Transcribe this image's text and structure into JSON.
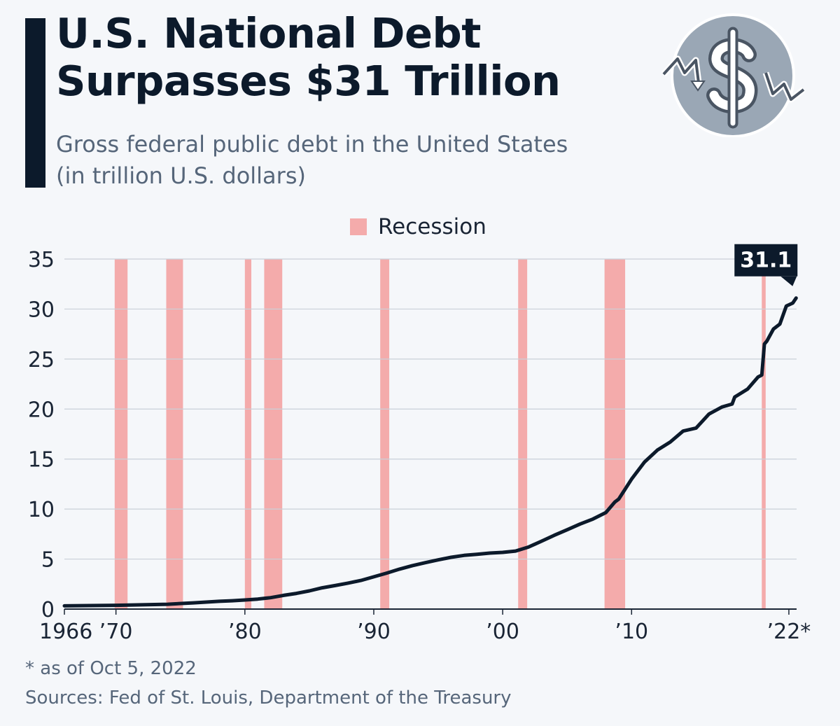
{
  "header": {
    "title_line1": "U.S. National Debt",
    "title_line2": "Surpasses $31 Trillion",
    "subtitle_line1": "Gross federal public debt in the United States",
    "subtitle_line2": "(in trillion U.S. dollars)"
  },
  "legend": {
    "label": "Recession",
    "color": "#f4abab"
  },
  "footer": {
    "footnote": "* as of Oct 5, 2022",
    "sources": "Sources: Fed of St. Louis, Department of the Treasury"
  },
  "logo": {
    "icon": "dollar-coin-icon",
    "color": "#9aa7b5"
  },
  "colors": {
    "line": "#0c1a2b",
    "recession": "#f4abab",
    "grid": "#c9d0d8",
    "text": "#1a2535"
  },
  "chart_data": {
    "type": "line",
    "xlim": [
      1966,
      2022.8
    ],
    "ylim": [
      0,
      35
    ],
    "yticks": [
      0,
      5,
      10,
      15,
      20,
      25,
      30,
      35
    ],
    "xticks": [
      {
        "value": 1966,
        "label": "1966"
      },
      {
        "value": 1970,
        "label": "’70"
      },
      {
        "value": 1980,
        "label": "’80"
      },
      {
        "value": 1990,
        "label": "’90"
      },
      {
        "value": 2000,
        "label": "’00"
      },
      {
        "value": 2010,
        "label": "’10"
      },
      {
        "value": 2022.2,
        "label": "’22*"
      }
    ],
    "recessions": [
      [
        1969.9,
        1970.9
      ],
      [
        1973.9,
        1975.2
      ],
      [
        1980.0,
        1980.5
      ],
      [
        1981.5,
        1982.9
      ],
      [
        1990.5,
        1991.2
      ],
      [
        2001.2,
        2001.9
      ],
      [
        2007.9,
        2009.5
      ],
      [
        2020.1,
        2020.4
      ]
    ],
    "series": [
      {
        "x": [
          1966,
          1968,
          1970,
          1972,
          1974,
          1976,
          1977,
          1978,
          1979,
          1980,
          1981,
          1982,
          1983,
          1984,
          1985,
          1986,
          1987,
          1988,
          1989,
          1990,
          1991,
          1992,
          1993,
          1994,
          1995,
          1996,
          1997,
          1998,
          1999,
          2000,
          2001,
          2002,
          2003,
          2004,
          2005,
          2006,
          2007,
          2008,
          2008.7,
          2009,
          2010,
          2011,
          2012,
          2013,
          2014,
          2015,
          2016,
          2017,
          2017.8,
          2018,
          2019,
          2019.8,
          2020.1,
          2020.3,
          2020.5,
          2021,
          2021.5,
          2022,
          2022.5,
          2022.76
        ],
        "y": [
          0.32,
          0.35,
          0.38,
          0.43,
          0.48,
          0.62,
          0.7,
          0.78,
          0.83,
          0.91,
          1.0,
          1.14,
          1.37,
          1.57,
          1.82,
          2.13,
          2.35,
          2.6,
          2.86,
          3.23,
          3.6,
          4.0,
          4.35,
          4.64,
          4.92,
          5.18,
          5.37,
          5.48,
          5.6,
          5.67,
          5.8,
          6.2,
          6.78,
          7.38,
          7.93,
          8.5,
          9.0,
          9.65,
          10.7,
          11.0,
          13.0,
          14.7,
          15.9,
          16.7,
          17.8,
          18.1,
          19.5,
          20.2,
          20.5,
          21.2,
          22.0,
          23.2,
          23.4,
          26.5,
          26.8,
          28.0,
          28.5,
          30.3,
          30.6,
          31.1
        ]
      }
    ],
    "last_value_label": "31.1"
  }
}
